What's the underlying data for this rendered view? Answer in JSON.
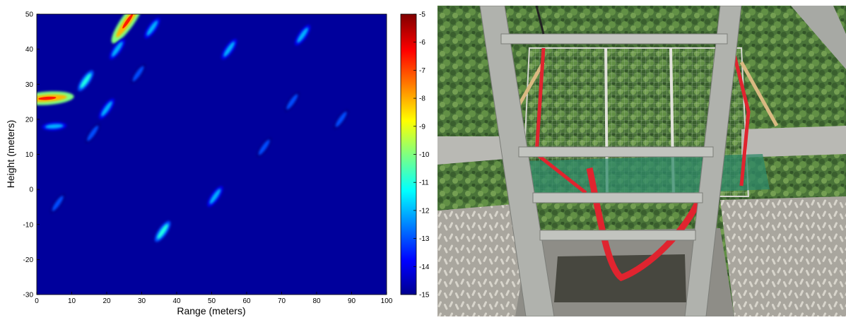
{
  "chart_data": {
    "type": "heatmap",
    "title": "",
    "xlabel": "Range (meters)",
    "ylabel": "Height (meters)",
    "xlim": [
      0,
      100
    ],
    "ylim": [
      -30,
      50
    ],
    "xticks": [
      0,
      10,
      20,
      30,
      40,
      50,
      60,
      70,
      80,
      90,
      100
    ],
    "yticks": [
      -30,
      -20,
      -10,
      0,
      10,
      20,
      30,
      40,
      50
    ],
    "colorbar": {
      "colormap": "jet",
      "range": [
        -15,
        -5
      ],
      "ticks": [
        -5,
        -6,
        -7,
        -8,
        -9,
        -10,
        -11,
        -12,
        -13,
        -14,
        -15
      ]
    },
    "background_value": -15,
    "reflections": [
      {
        "x": 3,
        "y": 26,
        "value": -8
      },
      {
        "x": 14,
        "y": 31,
        "value": -11
      },
      {
        "x": 20,
        "y": 23,
        "value": -12
      },
      {
        "x": 5,
        "y": 18,
        "value": -12
      },
      {
        "x": 16,
        "y": 16,
        "value": -13
      },
      {
        "x": 26,
        "y": 48,
        "value": -8
      },
      {
        "x": 23,
        "y": 40,
        "value": -12
      },
      {
        "x": 33,
        "y": 46,
        "value": -12
      },
      {
        "x": 29,
        "y": 33,
        "value": -13
      },
      {
        "x": 55,
        "y": 40,
        "value": -12
      },
      {
        "x": 76,
        "y": 44,
        "value": -12
      },
      {
        "x": 51,
        "y": -2,
        "value": -12
      },
      {
        "x": 36,
        "y": -12,
        "value": -11
      },
      {
        "x": 6,
        "y": -4,
        "value": -13
      },
      {
        "x": 73,
        "y": 25,
        "value": -13
      },
      {
        "x": 65,
        "y": 12,
        "value": -13
      },
      {
        "x": 87,
        "y": 20,
        "value": -13
      }
    ]
  },
  "colors": {
    "background": "#00009c",
    "colormap_stops": [
      "#00008f",
      "#0000ff",
      "#0080ff",
      "#00ffff",
      "#80ff80",
      "#ffff00",
      "#ff8000",
      "#ff0000",
      "#800000"
    ]
  },
  "photo": {
    "description_icon": "canopy-tower-photo"
  }
}
